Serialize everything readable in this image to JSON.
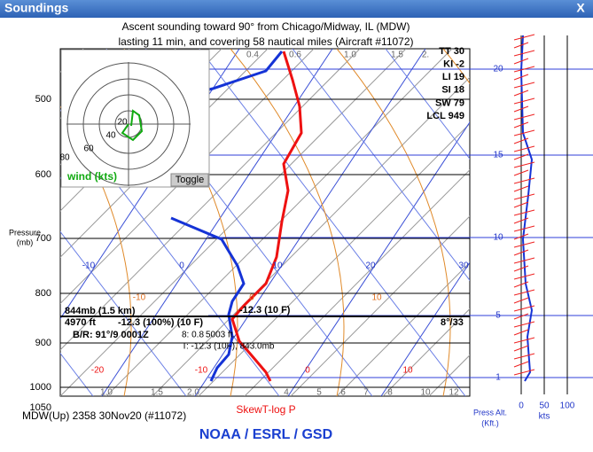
{
  "window": {
    "title": "Soundings",
    "close": "X"
  },
  "sounding": {
    "line1": "Ascent sounding toward 90° from Chicago/Midway, IL (MDW)",
    "line2": "lasting 11 min, and covering 58 nautical miles (Aircraft #11072)"
  },
  "pressure_axis": {
    "label_1": "Pressure",
    "label_2": "(mb)",
    "ticks": [
      "500",
      "600",
      "700",
      "800",
      "900",
      "1000",
      "1050"
    ]
  },
  "mixing_ratio_top": [
    "0.4",
    "0.6",
    "1.0",
    "1.5",
    "2."
  ],
  "mixing_ratio_bottom": [
    "1.0",
    "1.5",
    "2.0",
    "4",
    "5",
    "6",
    "7",
    "8",
    "10",
    "12"
  ],
  "isotherms_blue": [
    "-10",
    "0",
    "10",
    "20",
    "30"
  ],
  "isotherms_red_mid": [
    "-10",
    "0",
    "10"
  ],
  "isotherms_red_low": [
    "-20",
    "-10",
    "0",
    "10"
  ],
  "indices": [
    "TT 30",
    "KI -2",
    "LI 19",
    "SI 18",
    "SW 79",
    "LCL 949"
  ],
  "hodograph": {
    "rings": [
      "20",
      "40",
      "60",
      "80"
    ],
    "wind_label": "wind (kts)",
    "toggle": "Toggle"
  },
  "readout": {
    "level": "844mb (1.5 km)",
    "height": "4970 ft",
    "temp": "-12.3 (100%) (10 F)",
    "br": "B/R: 91°/9 0001Z",
    "mix": "8: 0.8",
    "alt": "5003 ft.",
    "t_line": "T: -12.3 (10F), 843.0mb",
    "cursor_temp": "-12.3 (10 F)",
    "wind": "8°/33"
  },
  "footer": {
    "station": "MDW(Up) 2358 30Nov20 (#11072)",
    "plot_type": "SkewT-log P",
    "org": "NOAA / ESRL / GSD"
  },
  "wind_panel": {
    "altitudes": [
      "20",
      "15",
      "10",
      "5",
      "1"
    ],
    "speed_ticks": [
      "0",
      "50",
      "100"
    ],
    "speed_unit": "kts",
    "alt_label_1": "Press Alt.",
    "alt_label_2": "(Kft.)"
  }
}
